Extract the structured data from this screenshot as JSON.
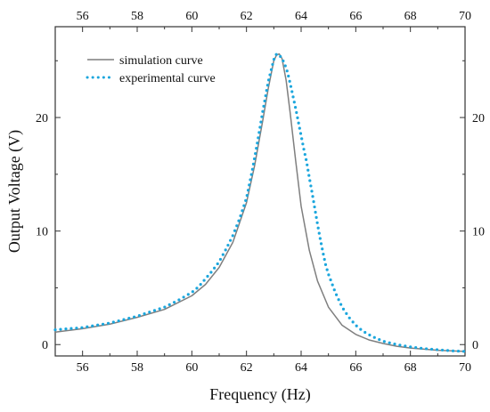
{
  "chart_data": {
    "type": "line",
    "xlabel": "Frequency (Hz)",
    "ylabel": "Output Voltage (V)",
    "xlim": [
      55,
      70
    ],
    "ylim": [
      -1,
      28
    ],
    "x_ticks": [
      56,
      58,
      60,
      62,
      64,
      66,
      68,
      70
    ],
    "y_ticks": [
      0,
      10,
      20
    ],
    "grid": false,
    "legend_position": "top-left",
    "series": [
      {
        "name": "simulation curve",
        "style": "solid",
        "color": "#7f7f7f",
        "x": [
          55,
          56,
          57,
          58,
          59,
          60,
          60.5,
          61,
          61.5,
          62,
          62.3,
          62.6,
          62.8,
          63,
          63.1,
          63.2,
          63.3,
          63.45,
          63.6,
          63.8,
          64,
          64.3,
          64.6,
          65,
          65.5,
          66,
          66.5,
          67,
          67.5,
          68,
          69,
          70
        ],
        "y": [
          1.1,
          1.4,
          1.8,
          2.4,
          3.1,
          4.3,
          5.3,
          6.8,
          9.0,
          12.5,
          15.8,
          19.8,
          22.6,
          25.0,
          25.5,
          25.6,
          25.2,
          23.3,
          20.4,
          16.2,
          12.2,
          8.3,
          5.6,
          3.3,
          1.7,
          0.9,
          0.4,
          0.1,
          -0.15,
          -0.3,
          -0.5,
          -0.6
        ]
      },
      {
        "name": "experimental curve",
        "style": "dotted",
        "color": "#1ba6dd",
        "x": [
          55,
          55.5,
          56,
          56.5,
          57,
          57.5,
          58,
          58.5,
          59,
          59.5,
          60,
          60.25,
          60.5,
          60.75,
          61,
          61.25,
          61.5,
          61.75,
          62,
          62.2,
          62.4,
          62.6,
          62.8,
          63,
          63.1,
          63.2,
          63.3,
          63.4,
          63.5,
          63.6,
          63.7,
          63.8,
          63.9,
          64,
          64.1,
          64.2,
          64.3,
          64.4,
          64.5,
          64.6,
          64.7,
          64.8,
          64.9,
          65,
          65.25,
          65.5,
          65.75,
          66,
          66.25,
          66.5,
          66.75,
          67,
          67.5,
          68,
          68.5,
          69,
          69.5,
          70
        ],
        "y": [
          1.3,
          1.4,
          1.5,
          1.7,
          1.9,
          2.2,
          2.5,
          2.9,
          3.3,
          3.9,
          4.6,
          5.1,
          5.8,
          6.5,
          7.3,
          8.4,
          9.6,
          11.1,
          12.9,
          15.2,
          17.8,
          20.6,
          23.2,
          25.1,
          25.6,
          25.5,
          25.2,
          24.7,
          24.0,
          23.0,
          21.9,
          20.8,
          19.6,
          18.4,
          17.2,
          16.1,
          14.7,
          13.4,
          12.0,
          10.6,
          9.3,
          8.1,
          7.0,
          6.2,
          4.6,
          3.3,
          2.4,
          1.7,
          1.2,
          0.85,
          0.55,
          0.3,
          0.0,
          -0.2,
          -0.35,
          -0.45,
          -0.55,
          -0.6
        ]
      }
    ]
  }
}
